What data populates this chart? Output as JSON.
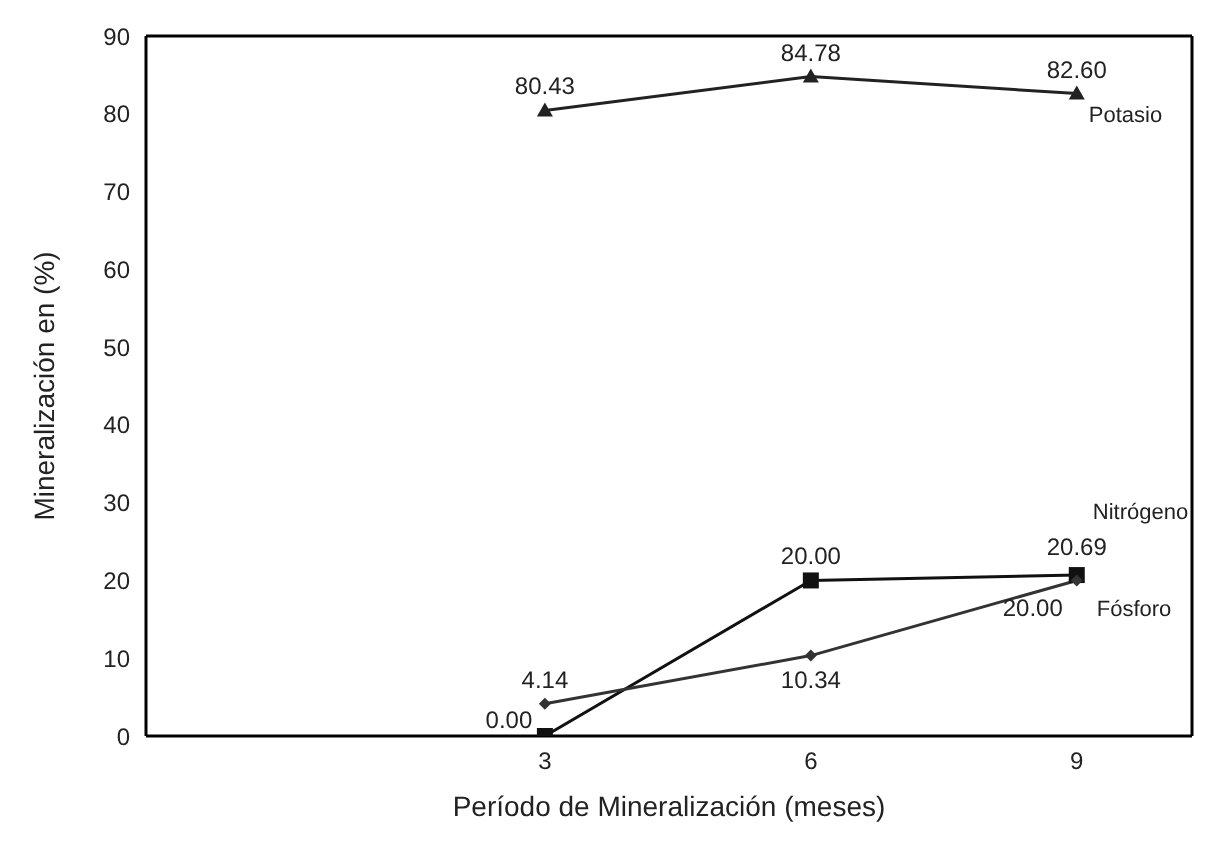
{
  "chart_data": {
    "type": "line",
    "xlabel": "Período de Mineralización (meses)",
    "ylabel": "Mineralización en (%)",
    "x": [
      3,
      6,
      9
    ],
    "xlim": [
      -1.5,
      10.3
    ],
    "xticks": [
      3,
      6,
      9
    ],
    "ylim": [
      0,
      90
    ],
    "yticks": [
      0,
      10,
      20,
      30,
      40,
      50,
      60,
      70,
      80,
      90
    ],
    "line_style": "solid",
    "series": [
      {
        "name": "Potasio",
        "color": "#222222",
        "marker": "triangle",
        "values": [
          80.43,
          84.78,
          82.6
        ],
        "value_labels": [
          "80.43",
          "84.78",
          "82.60"
        ]
      },
      {
        "name": "Nitrógeno",
        "color": "#111111",
        "marker": "square",
        "values": [
          0.0,
          20.0,
          20.69
        ],
        "value_labels": [
          "0.00",
          "20.00",
          "20.69"
        ]
      },
      {
        "name": "Fósforo",
        "color": "#333333",
        "marker": "diamond",
        "values": [
          4.14,
          10.34,
          20.0
        ],
        "value_labels": [
          "4.14",
          "10.34",
          "20.00"
        ]
      }
    ]
  }
}
